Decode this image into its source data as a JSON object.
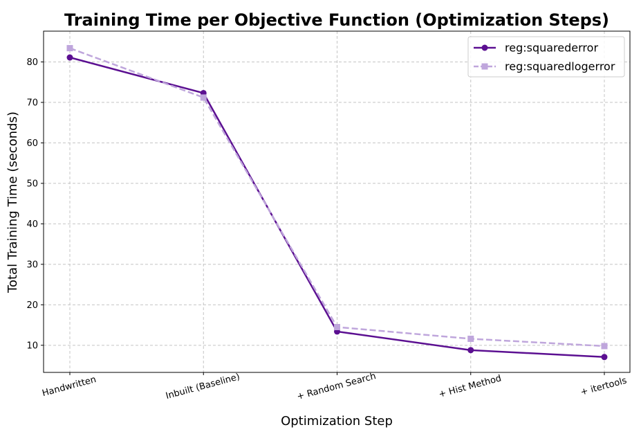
{
  "chart_data": {
    "type": "line",
    "title": "Training Time per Objective Function (Optimization Steps)",
    "xlabel": "Optimization Step",
    "ylabel": "Total Training Time (seconds)",
    "categories": [
      "Handwritten",
      "Inbuilt (Baseline)",
      "+ Random Search",
      "+ Hist Method",
      "+ itertools"
    ],
    "ylim": [
      3.3,
      87.6
    ],
    "yticks": [
      10,
      20,
      30,
      40,
      50,
      60,
      70,
      80
    ],
    "grid": true,
    "legend_position": "top-right",
    "series": [
      {
        "name": "reg:squarederror",
        "values": [
          81.1,
          72.3,
          13.4,
          8.8,
          7.1
        ],
        "color": "#5b0f91",
        "marker": "circle",
        "linestyle": "solid"
      },
      {
        "name": "reg:squaredlogerror",
        "values": [
          83.4,
          71.2,
          14.5,
          11.6,
          9.8
        ],
        "color": "#bfa6dc",
        "marker": "square",
        "linestyle": "dashed"
      }
    ]
  }
}
